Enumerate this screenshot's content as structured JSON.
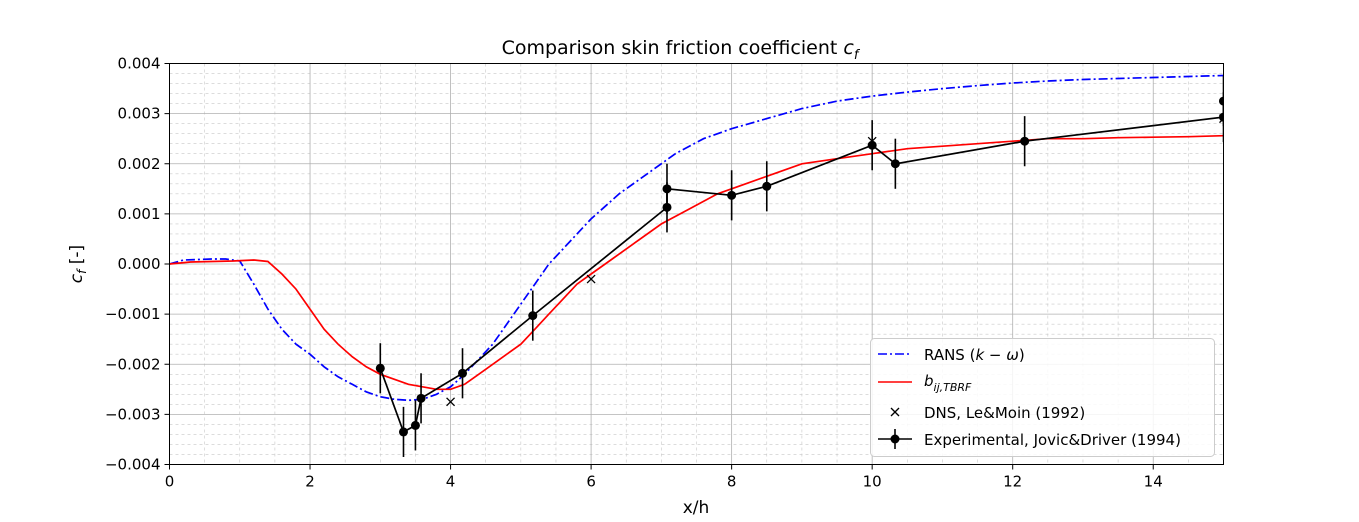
{
  "chart_data": {
    "type": "line",
    "title": "Comparison skin friction coefficient",
    "title_symbol": "c",
    "title_symbol_sub": "f",
    "xlabel": "x/h",
    "ylabel_symbol": "c",
    "ylabel_sub": "f",
    "ylabel_unit": " [-]",
    "xlim": [
      0,
      15
    ],
    "ylim": [
      -0.004,
      0.004
    ],
    "xticks": [
      0,
      2,
      4,
      6,
      8,
      10,
      12,
      14
    ],
    "xtick_labels": [
      "0",
      "2",
      "4",
      "6",
      "8",
      "10",
      "12",
      "14"
    ],
    "yticks": [
      -0.004,
      -0.003,
      -0.002,
      -0.001,
      0.0,
      0.001,
      0.002,
      0.003,
      0.004
    ],
    "ytick_labels": [
      "−0.004",
      "−0.003",
      "−0.002",
      "−0.001",
      "0.000",
      "0.001",
      "0.002",
      "0.003",
      "0.004"
    ],
    "grid": true,
    "legend_position": "bottom-right",
    "series": [
      {
        "name": "RANS (k − ω)",
        "label_main": "RANS (",
        "label_math": "k − ω",
        "label_end": ")",
        "color": "#0000ff",
        "style": "dashdot",
        "x": [
          0,
          0.2,
          0.4,
          0.6,
          0.8,
          1.0,
          1.2,
          1.4,
          1.6,
          1.8,
          2.0,
          2.2,
          2.4,
          2.6,
          2.8,
          3.0,
          3.2,
          3.4,
          3.6,
          3.8,
          4.0,
          4.2,
          4.4,
          4.6,
          4.8,
          5.0,
          5.2,
          5.4,
          5.6,
          5.8,
          6.0,
          6.4,
          6.8,
          7.2,
          7.6,
          8.0,
          8.5,
          9.0,
          9.5,
          10.0,
          10.5,
          11.0,
          11.5,
          12.0,
          12.5,
          13.0,
          13.5,
          14.0,
          14.5,
          15.0
        ],
        "y": [
          0.0,
          8e-05,
          9e-05,
          0.0001,
          0.0001,
          6e-05,
          -0.0004,
          -0.0009,
          -0.0013,
          -0.0016,
          -0.0018,
          -0.00205,
          -0.00225,
          -0.0024,
          -0.00255,
          -0.00265,
          -0.0027,
          -0.00272,
          -0.0027,
          -0.0026,
          -0.00245,
          -0.0022,
          -0.0019,
          -0.0016,
          -0.0012,
          -0.0008,
          -0.0004,
          0.0,
          0.0003,
          0.0006,
          0.0009,
          0.0014,
          0.0018,
          0.0022,
          0.0025,
          0.0027,
          0.0029,
          0.0031,
          0.00325,
          0.00335,
          0.00343,
          0.0035,
          0.00356,
          0.00361,
          0.00365,
          0.00368,
          0.0037,
          0.00372,
          0.00374,
          0.00376
        ]
      },
      {
        "name": "b_ij,TBRF",
        "label_main": "b",
        "label_sub": "ij,TBRF",
        "color": "#ff0000",
        "style": "solid",
        "x": [
          0,
          0.3,
          0.6,
          0.9,
          1.2,
          1.4,
          1.6,
          1.8,
          2.0,
          2.2,
          2.4,
          2.6,
          2.8,
          3.0,
          3.2,
          3.4,
          3.6,
          3.8,
          4.0,
          4.2,
          4.4,
          4.6,
          4.8,
          5.0,
          5.2,
          5.4,
          5.6,
          5.8,
          6.0,
          6.3,
          6.6,
          7.0,
          7.4,
          7.8,
          8.2,
          8.6,
          9.0,
          9.5,
          10.0,
          10.5,
          11.0,
          11.5,
          12.0,
          12.5,
          13.0,
          13.5,
          14.0,
          14.5,
          15.0
        ],
        "y": [
          0.0,
          4e-05,
          5e-05,
          6e-05,
          8e-05,
          5e-05,
          -0.0002,
          -0.0005,
          -0.0009,
          -0.0013,
          -0.0016,
          -0.00185,
          -0.00205,
          -0.0022,
          -0.0023,
          -0.0024,
          -0.00245,
          -0.0025,
          -0.0025,
          -0.0024,
          -0.0022,
          -0.002,
          -0.0018,
          -0.0016,
          -0.0013,
          -0.001,
          -0.0007,
          -0.0004,
          -0.0002,
          0.0001,
          0.0004,
          0.0008,
          0.0011,
          0.0014,
          0.0016,
          0.0018,
          0.002,
          0.0021,
          0.0022,
          0.0023,
          0.00235,
          0.0024,
          0.00245,
          0.0025,
          0.0025,
          0.00252,
          0.00253,
          0.00254,
          0.00256
        ]
      },
      {
        "name": "DNS, Le&Moin (1992)",
        "label_main": "DNS, Le&Moin (1992)",
        "color": "#000000",
        "style": "x-marker",
        "x": [
          4.0,
          6.0,
          10.0,
          15.0
        ],
        "y": [
          -0.00275,
          -0.0003,
          0.00245,
          0.0029
        ]
      },
      {
        "name": "Experimental, Jovic&Driver (1994)",
        "label_main": "Experimental, Jovic&Driver (1994)",
        "color": "#000000",
        "style": "line-errorbar",
        "x": [
          3.0,
          3.33,
          3.5,
          3.58,
          4.17,
          5.17,
          7.08,
          7.08,
          8.0,
          8.5,
          10.0,
          10.33,
          12.17,
          15.0,
          15.0
        ],
        "y": [
          -0.00208,
          -0.00335,
          -0.00322,
          -0.00268,
          -0.00218,
          -0.00103,
          0.00113,
          0.0015,
          0.00137,
          0.00155,
          0.00237,
          0.002,
          0.00245,
          0.00293,
          0.00325
        ],
        "yerr": [
          0.0005,
          0.0005,
          0.0005,
          0.0005,
          0.0005,
          0.0005,
          0.0005,
          0.0005,
          0.0005,
          0.0005,
          0.0005,
          0.0005,
          0.0005,
          0.0005,
          0.0005
        ]
      }
    ]
  }
}
